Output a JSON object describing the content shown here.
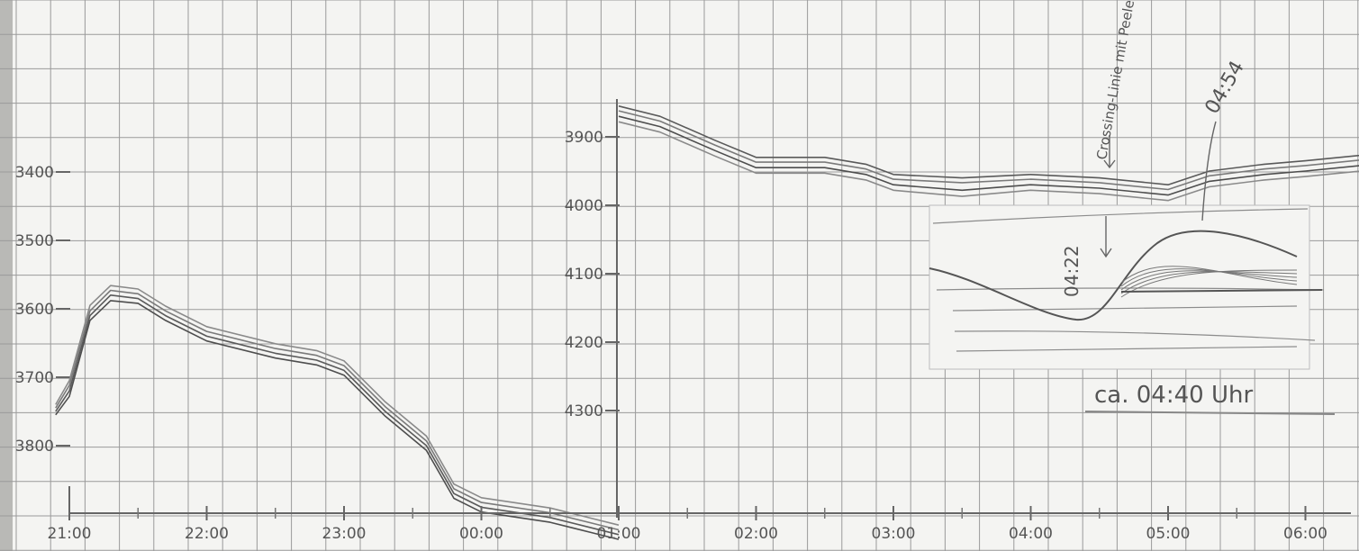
{
  "chart_data": [
    {
      "type": "line",
      "x_ticks": [
        "21:00",
        "22:00",
        "23:00",
        "00:00",
        "01:00",
        "02:00",
        "03:00",
        "04:00",
        "05:00",
        "06:00"
      ],
      "y_ticks": [
        "3400",
        "3500",
        "3600",
        "3700",
        "3800"
      ],
      "ylim": [
        3300,
        3900
      ],
      "y_inverted": true,
      "grid": true,
      "series": [
        {
          "values": [
            [
              -0.1,
              3750
            ],
            [
              0.0,
              3720
            ],
            [
              0.15,
              3610
            ],
            [
              0.3,
              3580
            ],
            [
              0.5,
              3585
            ],
            [
              0.7,
              3610
            ],
            [
              1.0,
              3640
            ],
            [
              1.5,
              3665
            ],
            [
              1.8,
              3675
            ],
            [
              2.0,
              3690
            ],
            [
              2.3,
              3750
            ],
            [
              2.6,
              3800
            ],
            [
              2.8,
              3870
            ],
            [
              3.0,
              3890
            ],
            [
              3.5,
              3905
            ],
            [
              3.8,
              3920
            ],
            [
              4.0,
              3930
            ]
          ]
        },
        {
          "values": [
            [
              -0.1,
              3745
            ],
            [
              0.0,
              3712
            ],
            [
              0.15,
              3603
            ],
            [
              0.3,
              3573
            ],
            [
              0.5,
              3578
            ],
            [
              0.7,
              3603
            ],
            [
              1.0,
              3633
            ],
            [
              1.5,
              3658
            ],
            [
              1.8,
              3668
            ],
            [
              2.0,
              3683
            ],
            [
              2.3,
              3743
            ],
            [
              2.6,
              3793
            ],
            [
              2.8,
              3863
            ],
            [
              3.0,
              3883
            ],
            [
              3.5,
              3898
            ],
            [
              3.8,
              3913
            ],
            [
              4.0,
              3923
            ]
          ]
        },
        {
          "values": [
            [
              -0.1,
              3755
            ],
            [
              0.0,
              3728
            ],
            [
              0.15,
              3617
            ],
            [
              0.3,
              3588
            ],
            [
              0.5,
              3592
            ],
            [
              0.7,
              3617
            ],
            [
              1.0,
              3647
            ],
            [
              1.5,
              3672
            ],
            [
              1.8,
              3682
            ],
            [
              2.0,
              3697
            ],
            [
              2.3,
              3757
            ],
            [
              2.6,
              3807
            ],
            [
              2.8,
              3877
            ],
            [
              3.0,
              3897
            ],
            [
              3.5,
              3912
            ],
            [
              3.8,
              3927
            ],
            [
              4.0,
              3937
            ]
          ]
        },
        {
          "values": [
            [
              -0.1,
              3740
            ],
            [
              0.0,
              3705
            ],
            [
              0.15,
              3595
            ],
            [
              0.3,
              3566
            ],
            [
              0.5,
              3571
            ],
            [
              0.7,
              3596
            ],
            [
              1.0,
              3626
            ],
            [
              1.5,
              3651
            ],
            [
              1.8,
              3661
            ],
            [
              2.0,
              3676
            ],
            [
              2.3,
              3736
            ],
            [
              2.6,
              3786
            ],
            [
              2.8,
              3856
            ],
            [
              3.0,
              3876
            ],
            [
              3.5,
              3891
            ],
            [
              3.8,
              3906
            ],
            [
              4.0,
              3916
            ]
          ]
        }
      ]
    },
    {
      "type": "line",
      "x_ticks": [
        "01:00",
        "02:00",
        "03:00",
        "04:00",
        "05:00",
        "06:00"
      ],
      "y_ticks": [
        "3900",
        "4000",
        "4100",
        "4200",
        "4300"
      ],
      "ylim": [
        3850,
        4400
      ],
      "y_inverted": true,
      "grid": true,
      "series": [
        {
          "values": [
            [
              4.0,
              3855
            ],
            [
              4.3,
              3870
            ],
            [
              4.7,
              3905
            ],
            [
              5.0,
              3930
            ],
            [
              5.5,
              3930
            ],
            [
              5.8,
              3940
            ],
            [
              6.0,
              3955
            ],
            [
              6.5,
              3960
            ],
            [
              7.0,
              3955
            ],
            [
              7.5,
              3960
            ],
            [
              8.0,
              3970
            ],
            [
              8.3,
              3950
            ],
            [
              8.7,
              3940
            ],
            [
              9.0,
              3935
            ],
            [
              9.5,
              3925
            ]
          ]
        },
        {
          "values": [
            [
              4.0,
              3862
            ],
            [
              4.3,
              3877
            ],
            [
              4.7,
              3912
            ],
            [
              5.0,
              3937
            ],
            [
              5.5,
              3937
            ],
            [
              5.8,
              3947
            ],
            [
              6.0,
              3962
            ],
            [
              6.5,
              3967
            ],
            [
              7.0,
              3962
            ],
            [
              7.5,
              3967
            ],
            [
              8.0,
              3977
            ],
            [
              8.3,
              3957
            ],
            [
              8.7,
              3947
            ],
            [
              9.0,
              3942
            ],
            [
              9.5,
              3932
            ]
          ]
        },
        {
          "values": [
            [
              4.0,
              3870
            ],
            [
              4.3,
              3885
            ],
            [
              4.7,
              3920
            ],
            [
              5.0,
              3945
            ],
            [
              5.5,
              3945
            ],
            [
              5.8,
              3955
            ],
            [
              6.0,
              3970
            ],
            [
              6.5,
              3978
            ],
            [
              7.0,
              3970
            ],
            [
              7.5,
              3975
            ],
            [
              8.0,
              3985
            ],
            [
              8.3,
              3965
            ],
            [
              8.7,
              3955
            ],
            [
              9.0,
              3950
            ],
            [
              9.5,
              3940
            ]
          ]
        },
        {
          "values": [
            [
              4.0,
              3878
            ],
            [
              4.3,
              3893
            ],
            [
              4.7,
              3928
            ],
            [
              5.0,
              3953
            ],
            [
              5.5,
              3953
            ],
            [
              5.8,
              3963
            ],
            [
              6.0,
              3978
            ],
            [
              6.5,
              3987
            ],
            [
              7.0,
              3978
            ],
            [
              7.5,
              3983
            ],
            [
              8.0,
              3993
            ],
            [
              8.3,
              3973
            ],
            [
              8.7,
              3963
            ],
            [
              9.0,
              3958
            ],
            [
              9.5,
              3948
            ]
          ]
        }
      ]
    }
  ],
  "annotations": {
    "crossing": "Crossing-Linie mit Peele",
    "peak": "04:54",
    "trough": "04:22",
    "approx": "ca. 04:40 Uhr"
  }
}
